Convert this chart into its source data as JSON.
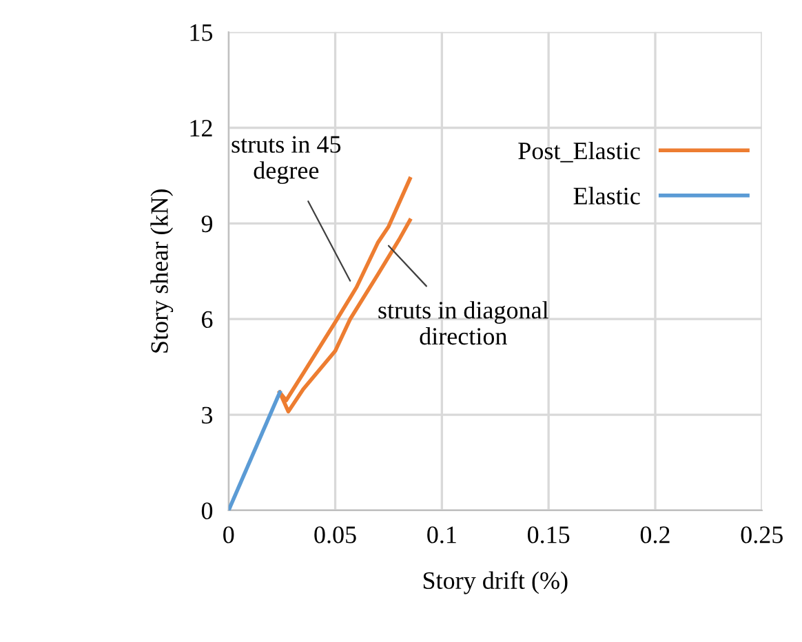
{
  "chart_data": {
    "type": "line",
    "xlabel": "Story drift (%)",
    "ylabel": "Story shear (kN)",
    "xlim": [
      0,
      0.25
    ],
    "xticks": [
      0,
      0.05,
      0.1,
      0.15,
      0.2,
      0.25
    ],
    "ylim": [
      0,
      15
    ],
    "yticks": [
      0,
      3,
      6,
      9,
      12,
      15
    ],
    "grid": true,
    "legend": "right",
    "series": [
      {
        "name": "Post_Elastic",
        "color": "#ed7d31",
        "x": [
          0.024,
          0.027,
          0.035,
          0.05,
          0.06,
          0.07,
          0.075,
          0.085
        ],
        "values": [
          3.7,
          3.45,
          4.3,
          5.9,
          7.0,
          8.4,
          8.9,
          10.4
        ]
      },
      {
        "color": "#ed7d31",
        "x": [
          0.024,
          0.028,
          0.035,
          0.05,
          0.057,
          0.07,
          0.08,
          0.085
        ],
        "values": [
          3.7,
          3.1,
          3.8,
          5.0,
          6.0,
          7.4,
          8.5,
          9.1
        ]
      },
      {
        "name": "Elastic",
        "color": "#5b9bd5",
        "x": [
          0,
          0.024
        ],
        "values": [
          0,
          3.7
        ]
      }
    ],
    "annotations": [
      {
        "text": "struts in 45\ndegree",
        "x": 0.057,
        "y": 7.2
      },
      {
        "text": "struts in diagonal\ndirection",
        "x": 0.075,
        "y": 8.3
      }
    ]
  }
}
